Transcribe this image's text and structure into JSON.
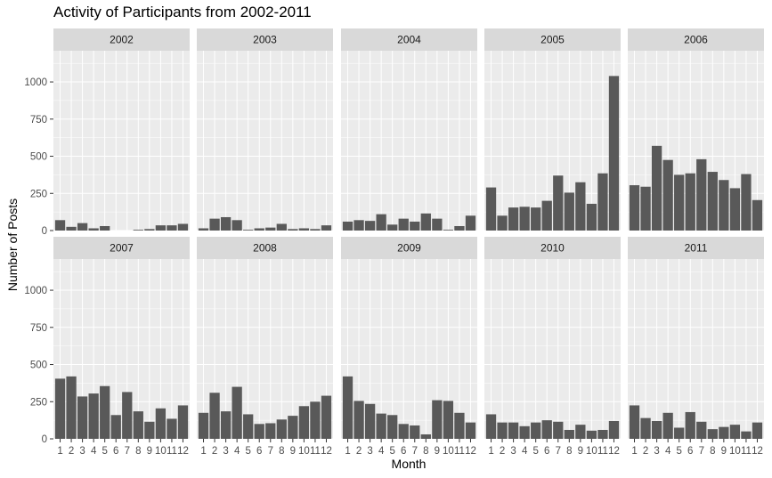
{
  "chart_data": {
    "type": "bar",
    "title": "Activity of Participants from 2002-2011",
    "xlabel": "Month",
    "ylabel": "Number of Posts",
    "ylim": [
      0,
      1200
    ],
    "yticks": [
      0,
      250,
      500,
      750,
      1000
    ],
    "categories": [
      "1",
      "2",
      "3",
      "4",
      "5",
      "6",
      "7",
      "8",
      "9",
      "10",
      "11",
      "12"
    ],
    "facets": [
      {
        "label": "2002",
        "values": [
          70,
          25,
          50,
          15,
          30,
          0,
          0,
          5,
          10,
          35,
          35,
          45
        ]
      },
      {
        "label": "2003",
        "values": [
          15,
          80,
          90,
          70,
          5,
          15,
          20,
          45,
          10,
          15,
          10,
          35
        ]
      },
      {
        "label": "2004",
        "values": [
          60,
          70,
          65,
          110,
          40,
          80,
          60,
          115,
          80,
          5,
          30,
          100
        ]
      },
      {
        "label": "2005",
        "values": [
          290,
          100,
          155,
          160,
          155,
          200,
          370,
          255,
          325,
          180,
          385,
          1040
        ]
      },
      {
        "label": "2006",
        "values": [
          305,
          295,
          570,
          475,
          375,
          385,
          480,
          395,
          340,
          285,
          380,
          205
        ]
      },
      {
        "label": "2007",
        "values": [
          405,
          420,
          285,
          305,
          355,
          160,
          315,
          185,
          115,
          205,
          135,
          225
        ]
      },
      {
        "label": "2008",
        "values": [
          175,
          310,
          185,
          350,
          165,
          100,
          105,
          130,
          155,
          220,
          250,
          290
        ]
      },
      {
        "label": "2009",
        "values": [
          420,
          255,
          235,
          170,
          160,
          100,
          90,
          30,
          260,
          255,
          175,
          110
        ]
      },
      {
        "label": "2010",
        "values": [
          165,
          110,
          110,
          85,
          110,
          125,
          115,
          60,
          95,
          55,
          60,
          120
        ]
      },
      {
        "label": "2011",
        "values": [
          225,
          140,
          120,
          175,
          75,
          180,
          115,
          65,
          80,
          95,
          50,
          110
        ]
      }
    ]
  },
  "colors": {
    "panel_bg": "#ebebeb",
    "strip_bg": "#d9d9d9",
    "grid_major": "#ffffff",
    "bar_fill": "#595959",
    "text": "#4d4d4d"
  }
}
